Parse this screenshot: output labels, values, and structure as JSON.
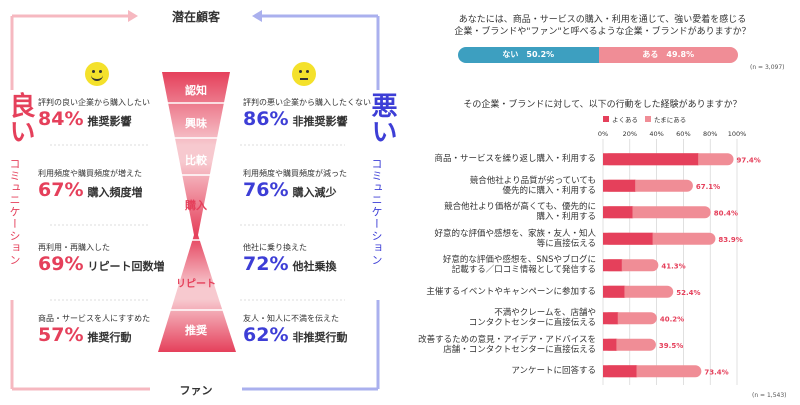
{
  "left": {
    "top_label": "潜在顧客",
    "bottom_label": "ファン",
    "good_title": "良い",
    "good_sub": "コミュニケーション",
    "bad_title": "悪い",
    "bad_sub": "コミュニケーション",
    "stages": [
      "認知",
      "興味",
      "比較",
      "購入",
      "リピート",
      "推奨"
    ],
    "good_stats": [
      {
        "label": "評判の良い企業から購入したい",
        "value": "84%",
        "desc": "推奨影響"
      },
      {
        "label": "利用頻度や購買頻度が増えた",
        "value": "67%",
        "desc": "購入頻度増"
      },
      {
        "label": "再利用・再購入した",
        "value": "69%",
        "desc": "リピート回数増"
      },
      {
        "label": "商品・サービスを人にすすめた",
        "value": "57%",
        "desc": "推奨行動"
      }
    ],
    "bad_stats": [
      {
        "label": "評判の悪い企業から購入したくない",
        "value": "86%",
        "desc": "非推奨影響"
      },
      {
        "label": "利用頻度や購買頻度が減った",
        "value": "76%",
        "desc": "購入減少"
      },
      {
        "label": "他社に乗り換えた",
        "value": "72%",
        "desc": "他社乗換"
      },
      {
        "label": "友人・知人に不満を伝えた",
        "value": "62%",
        "desc": "非推奨行動"
      }
    ]
  },
  "colors": {
    "pink": "#e5405b",
    "light_pink": "#f08d96",
    "blue": "#3d3ed6",
    "teal": "#3d9fc0",
    "yellow": "#f4e12b"
  },
  "q1": {
    "line1": "あなたには、商品・サービスの購入・利用を通じて、強い愛着を感じる",
    "line2": "企業・ブランドや\"ファン\"と呼べるような企業・ブランドがありますか？",
    "note": "(n = 3,097)"
  },
  "q2": {
    "title": "その企業・ブランドに対して、以下の行動をした経験がありますか？",
    "note": "(n = 1,543)"
  },
  "chart_data": [
    {
      "type": "bar",
      "orientation": "horizontal-stacked",
      "categories": [
        ""
      ],
      "series": [
        {
          "name": "ない",
          "values": [
            50.2
          ],
          "label": "50.2%"
        },
        {
          "name": "ある",
          "values": [
            49.8
          ],
          "label": "49.8%"
        }
      ],
      "xlim": [
        0,
        100
      ]
    },
    {
      "type": "bar",
      "orientation": "horizontal-stacked",
      "categories": [
        "商品・サービスを繰り返し購入・利用する",
        "競合他社より品質が劣っていても|優先的に購入・利用する",
        "競合他社より価格が高くても、優先的に|購入・利用する",
        "好意的な評価や感想を、家族・友人・知人|等に直接伝える",
        "好意的な評価や感想を、SNSやブログに|記載する／口コミ情報として発信する",
        "主催するイベントやキャンペーンに参加する",
        "不満やクレームを、店舗や|コンタクトセンターに直接伝える",
        "改善するための意見・アイデア・アドバイスを|店舗・コンタクトセンターに直接伝える",
        "アンケートに回答する"
      ],
      "series": [
        {
          "name": "よくある",
          "values": [
            71,
            24,
            22,
            37,
            14,
            16,
            11,
            10,
            25
          ]
        },
        {
          "name": "たまにある",
          "values": [
            26.4,
            43.1,
            58.4,
            46.9,
            27.3,
            36.4,
            29.2,
            29.5,
            48.4
          ]
        }
      ],
      "totals": [
        "97.4%",
        "67.1%",
        "80.4%",
        "83.9%",
        "41.3%",
        "52.4%",
        "40.2%",
        "39.5%",
        "73.4%"
      ],
      "ticks": [
        "0%",
        "20%",
        "40%",
        "60%",
        "80%",
        "100%"
      ],
      "xlim": [
        0,
        100
      ],
      "legend": "top-left"
    }
  ]
}
